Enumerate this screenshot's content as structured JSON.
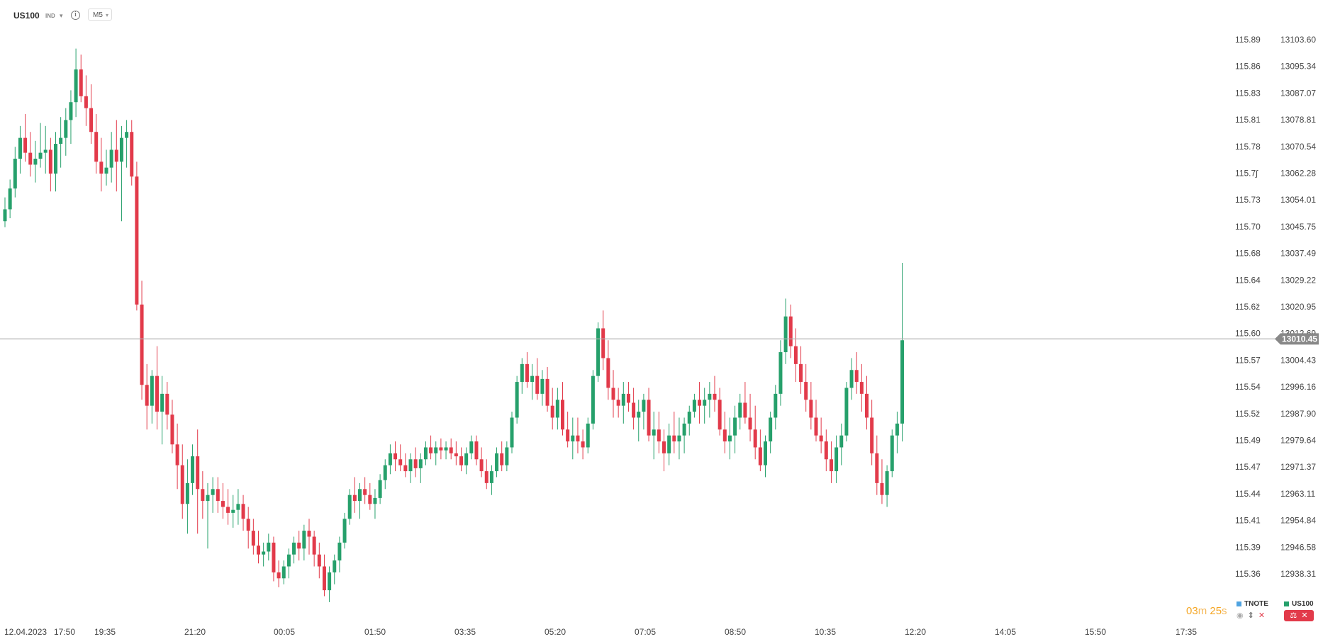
{
  "toolbar": {
    "symbol": "US100",
    "market_type": "IND",
    "timeframe": "M5"
  },
  "chart_data": {
    "type": "candlestick",
    "left_axis_ticks": [
      "115.89",
      "115.86",
      "115.83",
      "115.81",
      "115.78",
      "115.7ʃ",
      "115.73",
      "115.70",
      "115.68",
      "115.64",
      "115.6ž",
      "115.60",
      "115.57",
      "115.54",
      "115.5ž",
      "115.49",
      "115.47",
      "115.44",
      "115.41",
      "115.39",
      "115.36"
    ],
    "right_axis_ticks": [
      "13103.60",
      "13095.34",
      "13087.07",
      "13078.81",
      "13070.54",
      "13062.28",
      "13054.01",
      "13045.75",
      "13037.49",
      "13029.22",
      "13020.95",
      "13012.69",
      "13004.43",
      "12996.16",
      "12987.90",
      "12979.64",
      "12971.37",
      "12963.11",
      "12954.84",
      "12946.58",
      "12938.31"
    ],
    "y_range": [
      12931.5,
      13111.0
    ],
    "current_price": "13010.45",
    "current_price_value": 13010.45,
    "x_labels": [
      "12.04.2023",
      "17:50",
      "19:35",
      "21:20",
      "00:05",
      "01:50",
      "03:35",
      "05:20",
      "07:05",
      "08:50",
      "10:35",
      "12:20",
      "14:05",
      "15:50",
      "17:35"
    ],
    "colors": {
      "up": "#26a06b",
      "down": "#e23a4a",
      "price_line": "#b0b0b0",
      "price_badge": "#888888"
    },
    "candles": [
      [
        13050,
        13058,
        13048,
        13054
      ],
      [
        13054,
        13064,
        13051,
        13061
      ],
      [
        13061,
        13075,
        13058,
        13071
      ],
      [
        13071,
        13082,
        13066,
        13078
      ],
      [
        13078,
        13086,
        13070,
        13073
      ],
      [
        13073,
        13080,
        13065,
        13069
      ],
      [
        13069,
        13077,
        13063,
        13071
      ],
      [
        13071,
        13083,
        13068,
        13073
      ],
      [
        13073,
        13082,
        13066,
        13074
      ],
      [
        13074,
        13078,
        13060,
        13066
      ],
      [
        13066,
        13080,
        13060,
        13076
      ],
      [
        13076,
        13085,
        13068,
        13078
      ],
      [
        13078,
        13088,
        13072,
        13084
      ],
      [
        13084,
        13094,
        13076,
        13090
      ],
      [
        13090,
        13108,
        13085,
        13101
      ],
      [
        13101,
        13106,
        13090,
        13092
      ],
      [
        13092,
        13099,
        13082,
        13088
      ],
      [
        13088,
        13096,
        13076,
        13080
      ],
      [
        13080,
        13086,
        13066,
        13070
      ],
      [
        13070,
        13078,
        13060,
        13066
      ],
      [
        13066,
        13074,
        13062,
        13068
      ],
      [
        13068,
        13080,
        13063,
        13074
      ],
      [
        13074,
        13084,
        13060,
        13070
      ],
      [
        13070,
        13082,
        13050,
        13078
      ],
      [
        13078,
        13084,
        13068,
        13080
      ],
      [
        13080,
        13084,
        13062,
        13065
      ],
      [
        13065,
        13070,
        13020,
        13022
      ],
      [
        13022,
        13030,
        12990,
        12995
      ],
      [
        12995,
        13002,
        12980,
        12988
      ],
      [
        12988,
        13000,
        12982,
        12998
      ],
      [
        12998,
        13008,
        12980,
        12986
      ],
      [
        12986,
        12998,
        12975,
        12992
      ],
      [
        12992,
        12996,
        12980,
        12985
      ],
      [
        12985,
        12990,
        12972,
        12975
      ],
      [
        12975,
        12982,
        12960,
        12968
      ],
      [
        12968,
        12975,
        12950,
        12955
      ],
      [
        12955,
        12970,
        12945,
        12962
      ],
      [
        12962,
        12975,
        12958,
        12971
      ],
      [
        12971,
        12980,
        12945,
        12960
      ],
      [
        12960,
        12966,
        12950,
        12956
      ],
      [
        12956,
        12962,
        12940,
        12958
      ],
      [
        12958,
        12964,
        12952,
        12960
      ],
      [
        12960,
        12964,
        12952,
        12956
      ],
      [
        12956,
        12962,
        12950,
        12954
      ],
      [
        12954,
        12960,
        12948,
        12952
      ],
      [
        12952,
        12958,
        12947,
        12953
      ],
      [
        12953,
        12960,
        12948,
        12955
      ],
      [
        12955,
        12958,
        12946,
        12950
      ],
      [
        12950,
        12954,
        12940,
        12946
      ],
      [
        12946,
        12950,
        12938,
        12941
      ],
      [
        12941,
        12946,
        12935,
        12938
      ],
      [
        12938,
        12942,
        12934,
        12939
      ],
      [
        12939,
        12945,
        12936,
        12942
      ],
      [
        12942,
        12944,
        12929,
        12932
      ],
      [
        12932,
        12936,
        12927,
        12930
      ],
      [
        12930,
        12936,
        12928,
        12934
      ],
      [
        12934,
        12940,
        12930,
        12938
      ],
      [
        12938,
        12944,
        12935,
        12942
      ],
      [
        12942,
        12946,
        12936,
        12940
      ],
      [
        12940,
        12948,
        12936,
        12946
      ],
      [
        12946,
        12950,
        12938,
        12944
      ],
      [
        12944,
        12946,
        12934,
        12938
      ],
      [
        12938,
        12942,
        12930,
        12934
      ],
      [
        12934,
        12938,
        12924,
        12926
      ],
      [
        12926,
        12934,
        12922,
        12932
      ],
      [
        12932,
        12938,
        12928,
        12936
      ],
      [
        12936,
        12944,
        12932,
        12942
      ],
      [
        12942,
        12952,
        12940,
        12950
      ],
      [
        12950,
        12960,
        12948,
        12958
      ],
      [
        12958,
        12964,
        12952,
        12956
      ],
      [
        12956,
        12962,
        12950,
        12960
      ],
      [
        12960,
        12964,
        12955,
        12958
      ],
      [
        12958,
        12962,
        12953,
        12955
      ],
      [
        12955,
        12960,
        12950,
        12957
      ],
      [
        12957,
        12965,
        12955,
        12963
      ],
      [
        12963,
        12970,
        12960,
        12968
      ],
      [
        12968,
        12975,
        12965,
        12972
      ],
      [
        12972,
        12976,
        12966,
        12970
      ],
      [
        12970,
        12975,
        12966,
        12968
      ],
      [
        12968,
        12972,
        12964,
        12966
      ],
      [
        12966,
        12972,
        12962,
        12970
      ],
      [
        12970,
        12974,
        12964,
        12967
      ],
      [
        12967,
        12972,
        12962,
        12970
      ],
      [
        12970,
        12976,
        12968,
        12974
      ],
      [
        12974,
        12978,
        12970,
        12972
      ],
      [
        12972,
        12976,
        12968,
        12974
      ],
      [
        12974,
        12977,
        12970,
        12973
      ],
      [
        12973,
        12976,
        12970,
        12974
      ],
      [
        12974,
        12977,
        12970,
        12972
      ],
      [
        12972,
        12976,
        12968,
        12971
      ],
      [
        12971,
        12974,
        12966,
        12968
      ],
      [
        12968,
        12974,
        12965,
        12972
      ],
      [
        12972,
        12978,
        12970,
        12976
      ],
      [
        12976,
        12978,
        12968,
        12970
      ],
      [
        12970,
        12974,
        12964,
        12966
      ],
      [
        12966,
        12970,
        12960,
        12962
      ],
      [
        12962,
        12968,
        12958,
        12966
      ],
      [
        12966,
        12974,
        12964,
        12972
      ],
      [
        12972,
        12976,
        12966,
        12968
      ],
      [
        12968,
        12976,
        12966,
        12974
      ],
      [
        12974,
        12986,
        12972,
        12984
      ],
      [
        12984,
        12998,
        12982,
        12996
      ],
      [
        12996,
        13004,
        12992,
        13002
      ],
      [
        13002,
        13006,
        12994,
        12996
      ],
      [
        12996,
        13002,
        12990,
        12998
      ],
      [
        12998,
        13004,
        12990,
        12992
      ],
      [
        12992,
        13000,
        12988,
        12997
      ],
      [
        12997,
        13001,
        12986,
        12988
      ],
      [
        12988,
        12994,
        12980,
        12984
      ],
      [
        12984,
        12994,
        12980,
        12990
      ],
      [
        12990,
        12996,
        12978,
        12980
      ],
      [
        12980,
        12986,
        12974,
        12976
      ],
      [
        12976,
        12984,
        12970,
        12978
      ],
      [
        12978,
        12984,
        12972,
        12976
      ],
      [
        12976,
        12980,
        12970,
        12974
      ],
      [
        12974,
        12984,
        12972,
        12982
      ],
      [
        12982,
        13000,
        12980,
        12998
      ],
      [
        12998,
        13016,
        12996,
        13014
      ],
      [
        13014,
        13020,
        13000,
        13004
      ],
      [
        13004,
        13010,
        12990,
        12994
      ],
      [
        12994,
        13000,
        12984,
        12990
      ],
      [
        12990,
        12994,
        12984,
        12988
      ],
      [
        12988,
        12996,
        12982,
        12992
      ],
      [
        12992,
        12996,
        12986,
        12989
      ],
      [
        12989,
        12994,
        12980,
        12984
      ],
      [
        12984,
        12990,
        12976,
        12986
      ],
      [
        12986,
        12992,
        12980,
        12990
      ],
      [
        12990,
        12994,
        12976,
        12978
      ],
      [
        12978,
        12986,
        12970,
        12980
      ],
      [
        12980,
        12986,
        12972,
        12976
      ],
      [
        12976,
        12980,
        12966,
        12972
      ],
      [
        12972,
        12982,
        12968,
        12978
      ],
      [
        12978,
        12986,
        12972,
        12976
      ],
      [
        12976,
        12984,
        12970,
        12978
      ],
      [
        12978,
        12984,
        12972,
        12982
      ],
      [
        12982,
        12988,
        12978,
        12986
      ],
      [
        12986,
        12992,
        12984,
        12990
      ],
      [
        12990,
        12996,
        12982,
        12988
      ],
      [
        12988,
        12994,
        12982,
        12990
      ],
      [
        12990,
        12996,
        12984,
        12992
      ],
      [
        12992,
        12998,
        12986,
        12990
      ],
      [
        12990,
        12994,
        12978,
        12980
      ],
      [
        12980,
        12986,
        12972,
        12976
      ],
      [
        12976,
        12984,
        12970,
        12978
      ],
      [
        12978,
        12988,
        12972,
        12984
      ],
      [
        12984,
        12992,
        12980,
        12989
      ],
      [
        12989,
        12996,
        12982,
        12984
      ],
      [
        12984,
        12992,
        12976,
        12980
      ],
      [
        12980,
        12988,
        12970,
        12974
      ],
      [
        12974,
        12980,
        12966,
        12968
      ],
      [
        12968,
        12978,
        12964,
        12976
      ],
      [
        12976,
        12986,
        12972,
        12984
      ],
      [
        12984,
        12995,
        12980,
        12992
      ],
      [
        12992,
        13010,
        12988,
        13006
      ],
      [
        13006,
        13024,
        13002,
        13018
      ],
      [
        13018,
        13022,
        13004,
        13008
      ],
      [
        13008,
        13014,
        12996,
        13002
      ],
      [
        13002,
        13008,
        12992,
        12996
      ],
      [
        12996,
        13002,
        12986,
        12990
      ],
      [
        12990,
        12996,
        12980,
        12984
      ],
      [
        12984,
        12990,
        12976,
        12978
      ],
      [
        12978,
        12984,
        12972,
        12976
      ],
      [
        12976,
        12980,
        12966,
        12970
      ],
      [
        12970,
        12976,
        12962,
        12966
      ],
      [
        12966,
        12978,
        12962,
        12974
      ],
      [
        12974,
        12982,
        12968,
        12978
      ],
      [
        12978,
        12996,
        12976,
        12994
      ],
      [
        12994,
        13004,
        12990,
        13000
      ],
      [
        13000,
        13006,
        12992,
        12996
      ],
      [
        12996,
        13002,
        12986,
        12992
      ],
      [
        12992,
        12998,
        12980,
        12984
      ],
      [
        12984,
        12990,
        12968,
        12972
      ],
      [
        12972,
        12978,
        12958,
        12962
      ],
      [
        12962,
        12970,
        12955,
        12958
      ],
      [
        12958,
        12968,
        12954,
        12966
      ],
      [
        12966,
        12980,
        12964,
        12978
      ],
      [
        12978,
        12986,
        12972,
        12982
      ],
      [
        12982,
        13036,
        12976,
        13010
      ]
    ]
  },
  "footer": {
    "timer_minutes": "03",
    "timer_m": "m",
    "timer_seconds": "25",
    "timer_s": "s",
    "legend_1": "TNOTE",
    "legend_2": "US100",
    "legend_1_color": "#4fa3e0",
    "legend_2_color": "#26a06b"
  }
}
